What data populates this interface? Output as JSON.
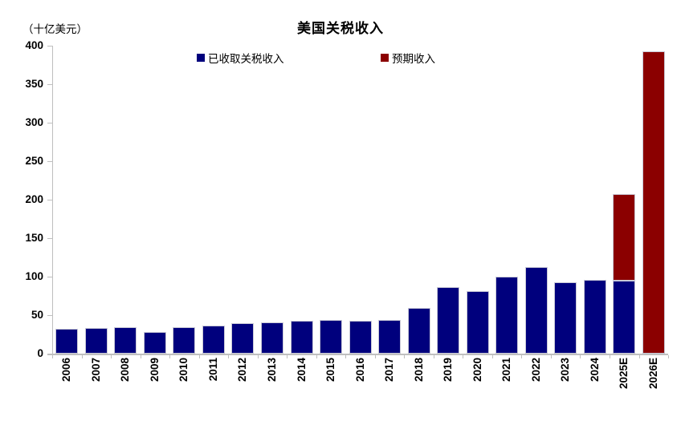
{
  "header": {
    "title": "美国关税收入",
    "unit_label": "（十亿美元）"
  },
  "legend": [
    {
      "label": "已收取关税收入",
      "color": "#00007d"
    },
    {
      "label": "预期收入",
      "color": "#8b0000"
    }
  ],
  "chart_data": {
    "type": "bar",
    "stacked": true,
    "title": "美国关税收入",
    "ylabel": "（十亿美元）",
    "categories": [
      "2006",
      "2007",
      "2008",
      "2009",
      "2010",
      "2011",
      "2012",
      "2013",
      "2014",
      "2015",
      "2016",
      "2017",
      "2018",
      "2019",
      "2020",
      "2021",
      "2022",
      "2023",
      "2024",
      "2025E",
      "2026E"
    ],
    "series": [
      {
        "name": "已收取关税收入",
        "color": "#00007d",
        "values": [
          32,
          33,
          34,
          28,
          34,
          37,
          40,
          41,
          43,
          44,
          43,
          44,
          59,
          86,
          81,
          100,
          113,
          93,
          96,
          95,
          0
        ]
      },
      {
        "name": "预期收入",
        "color": "#8b0000",
        "values": [
          0,
          0,
          0,
          0,
          0,
          0,
          0,
          0,
          0,
          0,
          0,
          0,
          0,
          0,
          0,
          0,
          0,
          0,
          0,
          112,
          393
        ]
      }
    ],
    "totals_note": {
      "2025E": 207,
      "2026E": 393
    },
    "ylim": [
      0,
      400
    ],
    "ytick_step": 50,
    "grid": false,
    "legend_position": "top-center",
    "axis_color": "#bfbfbf",
    "bar_border_color": "#c9c9d6"
  }
}
